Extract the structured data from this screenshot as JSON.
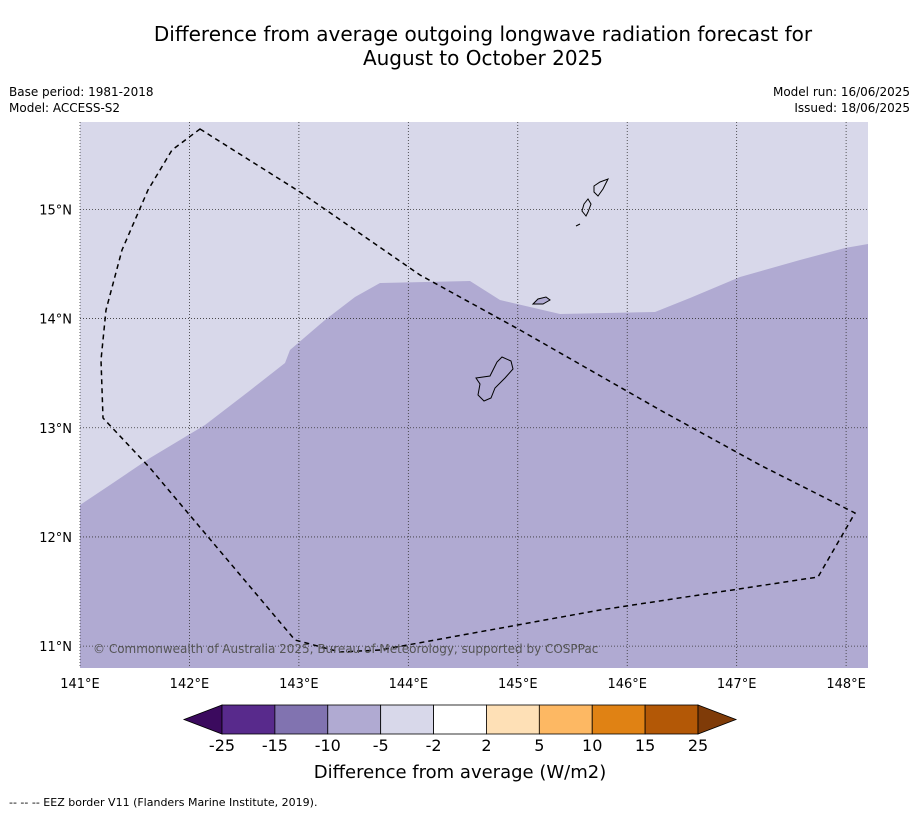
{
  "title_line1": "Difference from average outgoing longwave radiation forecast for",
  "title_line2": "August to October 2025",
  "meta_left": {
    "base_period": "Base period: 1981-2018",
    "model": "Model: ACCESS-S2"
  },
  "meta_right": {
    "model_run": "Model run: 16/06/2025",
    "issued": "Issued: 18/06/2025"
  },
  "map": {
    "lon_range": [
      141.0,
      148.2
    ],
    "lat_range": [
      10.8,
      15.8
    ],
    "lon_ticks": [
      "141°E",
      "142°E",
      "143°E",
      "144°E",
      "145°E",
      "146°E",
      "147°E",
      "148°E"
    ],
    "lat_ticks": [
      "15°N",
      "14°N",
      "13°N",
      "12°N",
      "11°N"
    ],
    "copyright": "© Commonwealth of Australia 2025, Bureau of Meteorology, supported by COSPPac"
  },
  "colorbar": {
    "labels": [
      "-25",
      "-15",
      "-10",
      "-5",
      "-2",
      "2",
      "5",
      "10",
      "15",
      "25"
    ],
    "colors": [
      "#3b0a5e",
      "#582a8c",
      "#8173b0",
      "#b0aad2",
      "#d8d8ea",
      "#ffffff",
      "#fee0b6",
      "#fdb863",
      "#e08214",
      "#b35806",
      "#7f3b08"
    ],
    "title": "Difference from average (W/m2)"
  },
  "legend_note": "-- -- -- EEZ border V11 (Flanders Marine Institute, 2019)."
}
